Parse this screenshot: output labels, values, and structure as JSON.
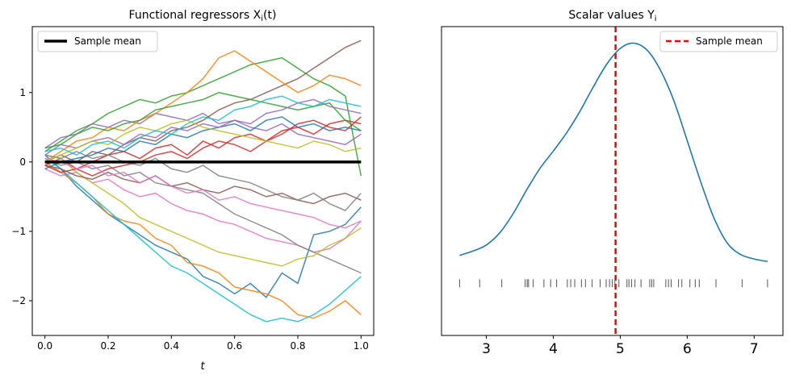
{
  "chart_data": [
    {
      "type": "line",
      "title": "Functional regressors X",
      "title_sub": "i",
      "title_tail": "(t)",
      "xlabel": "t",
      "ylabel": "",
      "xlim": [
        -0.04,
        1.04
      ],
      "ylim": [
        -2.5,
        1.95
      ],
      "xticks": [
        0.0,
        0.2,
        0.4,
        0.6,
        0.8,
        1.0
      ],
      "xtick_labels": [
        "0.0",
        "0.2",
        "0.4",
        "0.6",
        "0.8",
        "1.0"
      ],
      "yticks": [
        -2,
        -1,
        0,
        1
      ],
      "ytick_labels": [
        "−2",
        "−1",
        "0",
        "1"
      ],
      "legend": {
        "position": "upper left",
        "label": "Sample mean",
        "color": "#000000"
      },
      "grid": false,
      "sample_mean": {
        "name": "Sample mean",
        "value": 0.0,
        "color": "#000000"
      },
      "series": [
        {
          "color": "#1f77b4",
          "values": [
            0.1,
            -0.1,
            -0.35,
            -0.55,
            -0.75,
            -0.9,
            -1.05,
            -1.2,
            -1.3,
            -1.4,
            -1.65,
            -1.75,
            -1.9,
            -1.75,
            -1.95,
            -1.6,
            -1.75,
            -1.05,
            -1.0,
            -0.9,
            -0.65
          ]
        },
        {
          "color": "#ff7f0e",
          "values": [
            0.0,
            -0.15,
            -0.3,
            -0.5,
            -0.75,
            -0.85,
            -0.9,
            -1.1,
            -1.2,
            -1.45,
            -1.5,
            -1.6,
            -1.8,
            -1.85,
            -1.9,
            -2.0,
            -2.2,
            -2.25,
            -2.15,
            -2.0,
            -2.2
          ]
        },
        {
          "color": "#2ca02c",
          "values": [
            0.15,
            0.3,
            0.45,
            0.55,
            0.7,
            0.8,
            0.9,
            0.85,
            0.95,
            1.0,
            1.1,
            1.2,
            1.3,
            1.4,
            1.45,
            1.5,
            1.35,
            1.2,
            1.1,
            0.95,
            -0.2
          ]
        },
        {
          "color": "#d62728",
          "values": [
            -0.05,
            0.05,
            -0.1,
            0.0,
            0.1,
            0.15,
            0.05,
            0.2,
            0.25,
            0.1,
            0.3,
            0.2,
            0.35,
            0.4,
            0.3,
            0.45,
            0.5,
            0.4,
            0.55,
            0.6,
            0.55
          ]
        },
        {
          "color": "#9467bd",
          "values": [
            0.2,
            0.35,
            0.4,
            0.55,
            0.5,
            0.6,
            0.55,
            0.7,
            0.65,
            0.6,
            0.7,
            0.55,
            0.6,
            0.5,
            0.45,
            0.55,
            0.4,
            0.35,
            0.3,
            0.25,
            0.4
          ]
        },
        {
          "color": "#8c564b",
          "values": [
            0.0,
            0.1,
            0.0,
            0.15,
            0.1,
            0.25,
            0.35,
            0.3,
            0.45,
            0.5,
            0.6,
            0.75,
            0.85,
            0.9,
            1.0,
            1.1,
            1.2,
            1.35,
            1.5,
            1.65,
            1.75
          ]
        },
        {
          "color": "#e377c2",
          "values": [
            -0.1,
            -0.2,
            -0.15,
            -0.3,
            -0.25,
            -0.4,
            -0.5,
            -0.45,
            -0.6,
            -0.7,
            -0.75,
            -0.85,
            -0.9,
            -1.0,
            -1.1,
            -1.15,
            -1.2,
            -1.3,
            -1.25,
            -1.1,
            -0.85
          ]
        },
        {
          "color": "#7f7f7f",
          "values": [
            0.05,
            -0.05,
            0.0,
            -0.1,
            -0.05,
            -0.2,
            -0.15,
            -0.3,
            -0.35,
            -0.4,
            -0.45,
            -0.6,
            -0.75,
            -0.85,
            -0.95,
            -1.05,
            -1.2,
            -1.3,
            -1.4,
            -1.5,
            -1.6
          ]
        },
        {
          "color": "#bcbd22",
          "values": [
            0.1,
            0.05,
            -0.15,
            -0.3,
            -0.45,
            -0.6,
            -0.8,
            -0.9,
            -1.0,
            -1.1,
            -1.2,
            -1.3,
            -1.35,
            -1.4,
            -1.45,
            -1.5,
            -1.4,
            -1.35,
            -1.2,
            -1.1,
            -0.95
          ]
        },
        {
          "color": "#17becf",
          "values": [
            0.05,
            -0.1,
            -0.3,
            -0.5,
            -0.7,
            -0.9,
            -1.1,
            -1.3,
            -1.5,
            -1.6,
            -1.75,
            -1.9,
            -2.05,
            -2.2,
            -2.3,
            -2.25,
            -2.3,
            -2.2,
            -2.05,
            -1.85,
            -1.65
          ]
        },
        {
          "color": "#1f77b4",
          "values": [
            -0.1,
            0.0,
            0.05,
            0.1,
            0.2,
            0.15,
            0.3,
            0.25,
            0.4,
            0.35,
            0.45,
            0.5,
            0.55,
            0.45,
            0.6,
            0.65,
            0.5,
            0.55,
            0.45,
            0.5,
            0.45
          ]
        },
        {
          "color": "#ff7f0e",
          "values": [
            0.0,
            0.15,
            0.3,
            0.35,
            0.5,
            0.45,
            0.6,
            0.7,
            0.85,
            1.0,
            1.2,
            1.5,
            1.6,
            1.45,
            1.3,
            1.15,
            1.0,
            1.1,
            1.25,
            1.2,
            1.1
          ]
        },
        {
          "color": "#2ca02c",
          "values": [
            0.2,
            0.25,
            0.4,
            0.5,
            0.45,
            0.55,
            0.6,
            0.75,
            0.8,
            0.85,
            0.9,
            1.0,
            0.95,
            0.9,
            0.85,
            0.8,
            0.75,
            0.8,
            0.85,
            0.6,
            0.45
          ]
        },
        {
          "color": "#d62728",
          "values": [
            -0.05,
            -0.15,
            -0.1,
            -0.2,
            -0.1,
            -0.05,
            0.0,
            0.1,
            0.15,
            0.05,
            0.2,
            0.3,
            0.25,
            0.15,
            0.3,
            0.4,
            0.55,
            0.6,
            0.5,
            0.45,
            0.65
          ]
        },
        {
          "color": "#9467bd",
          "values": [
            0.1,
            0.25,
            0.2,
            0.3,
            0.35,
            0.25,
            0.4,
            0.35,
            0.5,
            0.45,
            0.55,
            0.5,
            0.6,
            0.55,
            0.7,
            0.75,
            0.85,
            0.9,
            0.8,
            0.75,
            0.7
          ]
        },
        {
          "color": "#8c564b",
          "values": [
            -0.05,
            -0.1,
            -0.2,
            -0.25,
            -0.15,
            -0.25,
            -0.3,
            -0.2,
            -0.35,
            -0.3,
            -0.4,
            -0.45,
            -0.35,
            -0.4,
            -0.5,
            -0.45,
            -0.55,
            -0.6,
            -0.5,
            -0.45,
            -0.55
          ]
        },
        {
          "color": "#e377c2",
          "values": [
            0.05,
            0.0,
            -0.1,
            -0.05,
            -0.2,
            -0.15,
            -0.3,
            -0.2,
            -0.35,
            -0.45,
            -0.4,
            -0.55,
            -0.5,
            -0.6,
            -0.65,
            -0.7,
            -0.75,
            -0.8,
            -0.9,
            -0.95,
            -0.85
          ]
        },
        {
          "color": "#7f7f7f",
          "values": [
            0.1,
            0.05,
            0.15,
            0.05,
            0.1,
            0.0,
            -0.05,
            0.05,
            -0.1,
            -0.15,
            -0.05,
            -0.2,
            -0.25,
            -0.3,
            -0.4,
            -0.5,
            -0.55,
            -0.45,
            -0.6,
            -0.7,
            -0.45
          ]
        },
        {
          "color": "#bcbd22",
          "values": [
            0.0,
            0.1,
            0.2,
            0.3,
            0.25,
            0.4,
            0.5,
            0.45,
            0.55,
            0.6,
            0.5,
            0.45,
            0.4,
            0.35,
            0.3,
            0.25,
            0.2,
            0.3,
            0.25,
            0.15,
            0.2
          ]
        },
        {
          "color": "#17becf",
          "values": [
            0.15,
            0.2,
            0.1,
            0.25,
            0.3,
            0.2,
            0.35,
            0.45,
            0.4,
            0.55,
            0.65,
            0.6,
            0.75,
            0.8,
            0.9,
            0.95,
            0.85,
            0.8,
            0.9,
            0.85,
            0.8
          ]
        }
      ]
    },
    {
      "type": "line",
      "title": "Scalar values Y",
      "title_sub": "i",
      "title_tail": "",
      "xlabel": "",
      "ylabel": "",
      "xlim": [
        2.33,
        7.43
      ],
      "xticks": [
        3,
        4,
        5,
        6,
        7
      ],
      "xtick_labels": [
        "3",
        "4",
        "5",
        "6",
        "7"
      ],
      "yticks": [],
      "grid": false,
      "legend": {
        "position": "upper right",
        "label": "Sample mean",
        "color": "#ff0000"
      },
      "sample_mean": {
        "name": "Sample mean",
        "value": 4.93,
        "color": "#ff0000"
      },
      "density": {
        "color": "#1f77b4",
        "x": [
          2.6,
          2.8,
          3.0,
          3.2,
          3.4,
          3.6,
          3.8,
          4.0,
          4.2,
          4.4,
          4.6,
          4.8,
          5.0,
          5.2,
          5.4,
          5.6,
          5.8,
          6.0,
          6.2,
          6.4,
          6.6,
          6.8,
          7.0,
          7.2
        ],
        "y": [
          0.032,
          0.037,
          0.044,
          0.058,
          0.08,
          0.107,
          0.132,
          0.152,
          0.173,
          0.198,
          0.226,
          0.252,
          0.27,
          0.276,
          0.268,
          0.245,
          0.21,
          0.164,
          0.117,
          0.075,
          0.046,
          0.033,
          0.028,
          0.025
        ],
        "ylim": [
          -0.06,
          0.295
        ]
      },
      "rug": {
        "color": "#555555",
        "values": [
          2.6,
          2.9,
          3.23,
          3.58,
          3.61,
          3.63,
          3.7,
          3.86,
          3.96,
          4.05,
          4.21,
          4.26,
          4.32,
          4.42,
          4.48,
          4.58,
          4.7,
          4.79,
          4.84,
          4.88,
          4.92,
          4.98,
          5.1,
          5.13,
          5.17,
          5.22,
          5.31,
          5.44,
          5.47,
          5.5,
          5.68,
          5.72,
          5.76,
          5.87,
          5.92,
          6.04,
          6.12,
          6.18,
          6.43,
          6.82,
          7.2
        ]
      }
    }
  ]
}
